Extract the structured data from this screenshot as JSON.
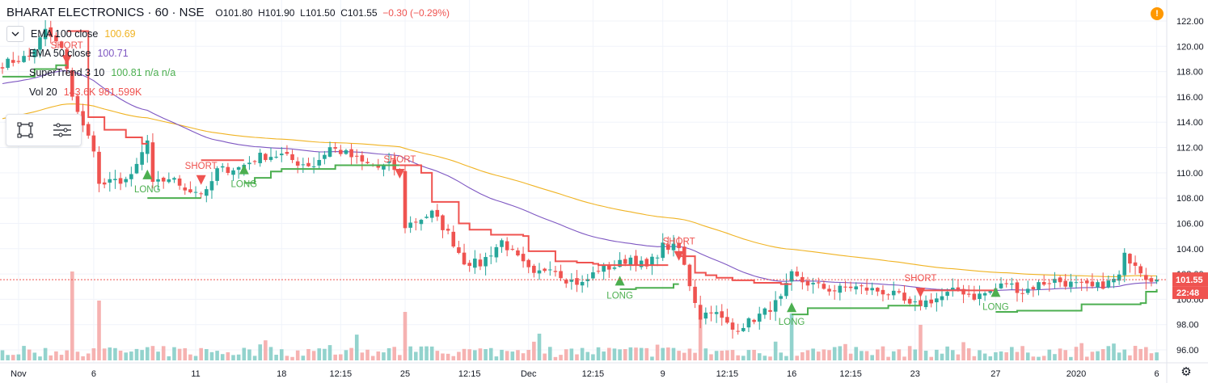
{
  "header": {
    "symbol": "BHARAT ELECTRONICS · 60 · NSE",
    "open": "O101.80",
    "high": "H101.90",
    "low": "L101.50",
    "close": "C101.55",
    "change": "−0.30 (−0.29%)"
  },
  "legend": {
    "collapse_icon": "chevron-down-icon",
    "items": [
      {
        "name": "EMA 100 close",
        "value": "100.69",
        "color": "#f0b323"
      },
      {
        "name": "EMA 50 close",
        "value": "100.71",
        "color": "#7e57c2"
      },
      {
        "name": "SuperTrend 3 10",
        "value": "100.81  n/a  n/a",
        "color": "#4caf50",
        "value_color_na": "#ef5350"
      },
      {
        "name": "Vol 20",
        "value": "143.6K  981.599K",
        "color": "#ef5350"
      }
    ]
  },
  "toolbox": {
    "icons": [
      "object-tree-icon",
      "list-icon"
    ]
  },
  "badges": {
    "warning_icon": "warning-icon",
    "settings_icon": "gear-icon"
  },
  "colors": {
    "up": "#26a69a",
    "down": "#ef5350",
    "ema100": "#f0b323",
    "ema50": "#7e57c2",
    "st_up": "#4caf50",
    "st_down": "#ef5350",
    "vol_up": "#80cbc4",
    "vol_down": "#f5a5a3"
  },
  "chart_data": {
    "type": "candlestick",
    "y_ticks": [
      "96.00",
      "98.00",
      "100.00",
      "102.00",
      "104.00",
      "106.00",
      "108.00",
      "110.00",
      "112.00",
      "114.00",
      "116.00",
      "118.00",
      "120.00",
      "122.00"
    ],
    "ylim": [
      95.5,
      122.6
    ],
    "x_ticks": [
      {
        "label": "Nov",
        "i": 3
      },
      {
        "label": "6",
        "i": 17
      },
      {
        "label": "11",
        "i": 36
      },
      {
        "label": "18",
        "i": 52
      },
      {
        "label": "12:15",
        "i": 63
      },
      {
        "label": "25",
        "i": 75
      },
      {
        "label": "12:15",
        "i": 87
      },
      {
        "label": "Dec",
        "i": 98
      },
      {
        "label": "12:15",
        "i": 110
      },
      {
        "label": "9",
        "i": 123
      },
      {
        "label": "12:15",
        "i": 135
      },
      {
        "label": "16",
        "i": 147
      },
      {
        "label": "12:15",
        "i": 158
      },
      {
        "label": "23",
        "i": 170
      },
      {
        "label": "27",
        "i": 185
      },
      {
        "label": "2020",
        "i": 200
      },
      {
        "label": "6",
        "i": 215
      }
    ],
    "last_price": "101.55",
    "countdown": "22:48",
    "anchors": [
      [
        0,
        118.6
      ],
      [
        5,
        119.2
      ],
      [
        8,
        121.2
      ],
      [
        11,
        119.8
      ],
      [
        13,
        116.2
      ],
      [
        15,
        113.6
      ],
      [
        17,
        112.0
      ],
      [
        18,
        109.0
      ],
      [
        20,
        109.2
      ],
      [
        24,
        109.6
      ],
      [
        27,
        112.5
      ],
      [
        28,
        109.0
      ],
      [
        31,
        109.6
      ],
      [
        35,
        108.6
      ],
      [
        38,
        108.4
      ],
      [
        40,
        110.2
      ],
      [
        44,
        110.4
      ],
      [
        48,
        111.3
      ],
      [
        52,
        111.4
      ],
      [
        55,
        110.8
      ],
      [
        58,
        110.6
      ],
      [
        61,
        112.0
      ],
      [
        64,
        111.5
      ],
      [
        67,
        110.8
      ],
      [
        70,
        110.4
      ],
      [
        72,
        110.6
      ],
      [
        74,
        110.0
      ],
      [
        75,
        105.8
      ],
      [
        77,
        106.2
      ],
      [
        80,
        106.8
      ],
      [
        83,
        105.2
      ],
      [
        86,
        103.0
      ],
      [
        89,
        102.8
      ],
      [
        93,
        104.6
      ],
      [
        96,
        103.2
      ],
      [
        99,
        101.8
      ],
      [
        102,
        102.7
      ],
      [
        105,
        101.6
      ],
      [
        108,
        101.2
      ],
      [
        111,
        102.4
      ],
      [
        114,
        102.6
      ],
      [
        117,
        103.3
      ],
      [
        120,
        102.5
      ],
      [
        123,
        104.2
      ],
      [
        126,
        104.0
      ],
      [
        128,
        101.2
      ],
      [
        130,
        98.6
      ],
      [
        132,
        99.2
      ],
      [
        134,
        98.4
      ],
      [
        136,
        97.6
      ],
      [
        139,
        98.2
      ],
      [
        142,
        99.0
      ],
      [
        145,
        100.0
      ],
      [
        147,
        101.9
      ],
      [
        149,
        101.4
      ],
      [
        152,
        101.0
      ],
      [
        155,
        100.7
      ],
      [
        158,
        101.0
      ],
      [
        161,
        100.8
      ],
      [
        164,
        100.6
      ],
      [
        167,
        100.2
      ],
      [
        169,
        99.4
      ],
      [
        172,
        99.8
      ],
      [
        175,
        100.2
      ],
      [
        178,
        100.8
      ],
      [
        181,
        100.2
      ],
      [
        184,
        100.6
      ],
      [
        187,
        101.3
      ],
      [
        190,
        100.6
      ],
      [
        193,
        101.2
      ],
      [
        196,
        101.5
      ],
      [
        199,
        101.2
      ],
      [
        203,
        100.9
      ],
      [
        206,
        101.3
      ],
      [
        208,
        101.8
      ],
      [
        209,
        103.4
      ],
      [
        211,
        102.9
      ],
      [
        213,
        101.8
      ],
      [
        215,
        101.55
      ]
    ],
    "supertrend": [
      {
        "dir": "up",
        "pts": [
          [
            0,
            117.6
          ],
          [
            5,
            117.6
          ],
          [
            6,
            118.2
          ],
          [
            9,
            118.2
          ],
          [
            10,
            118.5
          ],
          [
            12,
            118.5
          ]
        ]
      },
      {
        "dir": "down",
        "pts": [
          [
            12,
            121.2
          ],
          [
            16,
            114.4
          ],
          [
            17,
            114.4
          ],
          [
            19,
            113.4
          ],
          [
            23,
            112.8
          ],
          [
            26,
            112.3
          ],
          [
            27,
            112.3
          ]
        ]
      },
      {
        "dir": "up",
        "pts": [
          [
            27,
            108.0
          ],
          [
            37,
            108.0
          ]
        ]
      },
      {
        "dir": "down",
        "pts": [
          [
            37,
            111.0
          ],
          [
            45,
            111.0
          ]
        ]
      },
      {
        "dir": "up",
        "pts": [
          [
            45,
            109.2
          ],
          [
            47,
            109.6
          ],
          [
            50,
            110.1
          ],
          [
            52,
            110.3
          ],
          [
            56,
            110.3
          ],
          [
            61,
            110.3
          ],
          [
            62,
            110.6
          ],
          [
            73,
            110.6
          ],
          [
            74,
            110.6
          ]
        ]
      },
      {
        "dir": "down",
        "pts": [
          [
            74,
            110.6
          ],
          [
            76,
            110.6
          ],
          [
            78,
            110.0
          ],
          [
            80,
            107.7
          ],
          [
            83,
            107.7
          ],
          [
            85,
            106.0
          ],
          [
            87,
            105.5
          ],
          [
            91,
            105.1
          ],
          [
            95,
            105.1
          ],
          [
            97,
            105.0
          ],
          [
            98,
            103.8
          ],
          [
            103,
            103.0
          ],
          [
            107,
            102.9
          ],
          [
            110,
            102.8
          ],
          [
            111,
            102.7
          ],
          [
            124,
            102.7
          ]
        ]
      },
      {
        "dir": "up",
        "pts": [
          [
            115,
            100.8
          ],
          [
            118,
            100.9
          ],
          [
            124,
            100.9
          ],
          [
            125,
            101.2
          ],
          [
            126,
            101.2
          ]
        ]
      },
      {
        "dir": "down",
        "pts": [
          [
            126,
            103.4
          ],
          [
            129,
            102.1
          ],
          [
            131,
            101.9
          ],
          [
            133,
            101.7
          ],
          [
            136,
            101.5
          ],
          [
            140,
            101.3
          ],
          [
            145,
            101.2
          ],
          [
            147,
            101.2
          ]
        ]
      },
      {
        "dir": "up",
        "pts": [
          [
            147,
            98.8
          ],
          [
            150,
            99.3
          ],
          [
            165,
            99.5
          ],
          [
            171,
            99.5
          ]
        ]
      },
      {
        "dir": "down",
        "pts": [
          [
            171,
            100.7
          ],
          [
            185,
            100.9
          ]
        ]
      },
      {
        "dir": "up",
        "pts": [
          [
            185,
            99.0
          ],
          [
            189,
            99.1
          ],
          [
            200,
            99.1
          ],
          [
            201,
            99.6
          ],
          [
            212,
            99.7
          ],
          [
            213,
            100.6
          ],
          [
            215,
            100.8
          ]
        ]
      }
    ],
    "signals": [
      {
        "type": "SHORT",
        "i": 12,
        "price": 118.8
      },
      {
        "type": "LONG",
        "i": 27,
        "price": 110.0
      },
      {
        "type": "SHORT",
        "i": 37,
        "price": 109.3
      },
      {
        "type": "LONG",
        "i": 45,
        "price": 110.4
      },
      {
        "type": "SHORT",
        "i": 74,
        "price": 109.8
      },
      {
        "type": "LONG",
        "i": 115,
        "price": 101.6
      },
      {
        "type": "SHORT",
        "i": 126,
        "price": 103.3
      },
      {
        "type": "LONG",
        "i": 147,
        "price": 99.5
      },
      {
        "type": "SHORT",
        "i": 171,
        "price": 100.4
      },
      {
        "type": "LONG",
        "i": 185,
        "price": 100.7
      }
    ]
  }
}
